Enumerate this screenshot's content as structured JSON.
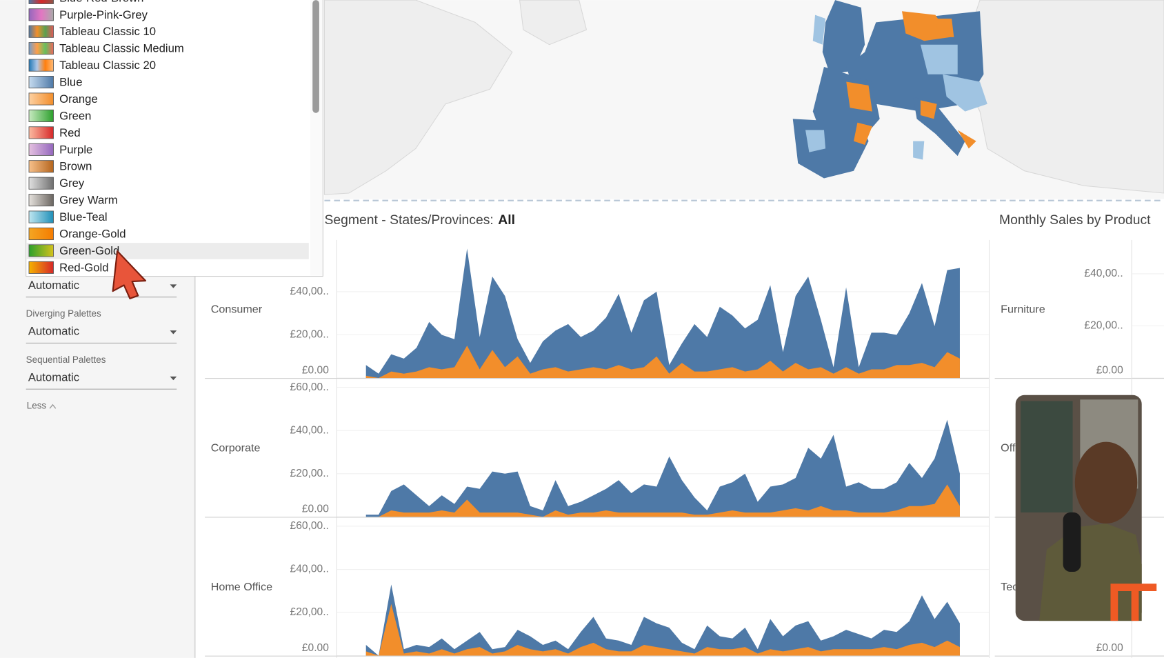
{
  "palette_menu": {
    "items": [
      "Blue-Red-Brown",
      "Purple-Pink-Grey",
      "Tableau Classic 10",
      "Tableau Classic Medium",
      "Tableau Classic 20",
      "Blue",
      "Orange",
      "Green",
      "Red",
      "Purple",
      "Brown",
      "Grey",
      "Grey Warm",
      "Blue-Teal",
      "Orange-Gold",
      "Green-Gold",
      "Red-Gold"
    ],
    "selected": "Green-Gold"
  },
  "left_panel": {
    "categorical_value": "Automatic",
    "diverging_label": "Diverging Palettes",
    "diverging_value": "Automatic",
    "sequential_label": "Sequential Palettes",
    "sequential_value": "Automatic",
    "less": "Less"
  },
  "sheet_title": {
    "prefix": "Segment - States/Provinces:",
    "value": "All"
  },
  "chart_data": [
    {
      "type": "area",
      "label": "Consumer",
      "ylim": [
        0,
        64000
      ],
      "yticks": [
        {
          "value": 0,
          "label": "£0.00"
        },
        {
          "value": 20000,
          "label": "£20,00.."
        },
        {
          "value": 40000,
          "label": "£40,00.."
        }
      ],
      "series": [
        {
          "color": "#4e79a7",
          "values": [
            6000,
            2000,
            11000,
            9000,
            14000,
            26000,
            20000,
            18000,
            60000,
            19000,
            47000,
            38000,
            18000,
            7000,
            17000,
            22000,
            25000,
            19000,
            22000,
            28000,
            39000,
            21000,
            36000,
            40000,
            6000,
            16000,
            25000,
            19000,
            33000,
            29000,
            23000,
            27000,
            43000,
            12000,
            38000,
            47000,
            27000,
            5000,
            42000,
            5000,
            21000,
            21000,
            20000,
            30000,
            44000,
            24000,
            50000,
            51000
          ]
        },
        {
          "color": "#f28e2b",
          "values": [
            1000,
            0,
            3000,
            2000,
            3000,
            5000,
            4000,
            5000,
            15000,
            4000,
            13000,
            5000,
            10000,
            2000,
            4000,
            5000,
            3000,
            4000,
            5000,
            4000,
            6000,
            4000,
            5000,
            10000,
            2000,
            7000,
            3000,
            3000,
            4000,
            5000,
            3000,
            4000,
            8000,
            3000,
            7000,
            4000,
            5000,
            2000,
            5000,
            2000,
            4000,
            4000,
            6000,
            6000,
            7000,
            5000,
            12000,
            9000
          ]
        }
      ]
    },
    {
      "type": "area",
      "label": "Corporate",
      "ylim": [
        0,
        64000
      ],
      "yticks": [
        {
          "value": 0,
          "label": "£0.00"
        },
        {
          "value": 20000,
          "label": "£20,00.."
        },
        {
          "value": 40000,
          "label": "£40,00.."
        },
        {
          "value": 60000,
          "label": "£60,00.."
        }
      ],
      "series": [
        {
          "color": "#4e79a7",
          "values": [
            1000,
            1000,
            12000,
            15000,
            10000,
            5000,
            10000,
            6000,
            14000,
            13000,
            21000,
            20000,
            21000,
            5000,
            3000,
            17000,
            5000,
            7000,
            10000,
            13000,
            17000,
            11000,
            15000,
            14000,
            28000,
            17000,
            9000,
            3000,
            14000,
            16000,
            20000,
            7000,
            14000,
            15000,
            18000,
            32000,
            27000,
            38000,
            14000,
            16000,
            13000,
            13000,
            16000,
            25000,
            18000,
            27000,
            45000,
            20000
          ]
        },
        {
          "color": "#f28e2b",
          "values": [
            0,
            0,
            3000,
            2000,
            2000,
            2000,
            3000,
            2000,
            8000,
            2000,
            2000,
            2000,
            2000,
            1000,
            0,
            3000,
            1000,
            2000,
            2000,
            3000,
            2000,
            2000,
            2000,
            2000,
            2000,
            2000,
            1000,
            1000,
            2000,
            3000,
            2000,
            2000,
            2000,
            3000,
            4000,
            3000,
            5000,
            3000,
            3000,
            2000,
            2000,
            2000,
            3000,
            5000,
            5000,
            6000,
            15000,
            5000
          ]
        }
      ]
    },
    {
      "type": "area",
      "label": "Home Office",
      "ylim": [
        0,
        64000
      ],
      "yticks": [
        {
          "value": 0,
          "label": "£0.00"
        },
        {
          "value": 20000,
          "label": "£20,00.."
        },
        {
          "value": 40000,
          "label": "£40,00.."
        },
        {
          "value": 60000,
          "label": "£60,00.."
        }
      ],
      "series": [
        {
          "color": "#4e79a7",
          "values": [
            5000,
            0,
            33000,
            3000,
            5000,
            4000,
            8000,
            3000,
            7000,
            11000,
            3000,
            4000,
            12000,
            9000,
            5000,
            7000,
            3000,
            11000,
            18000,
            8000,
            7000,
            5000,
            18000,
            15000,
            13000,
            6000,
            3000,
            14000,
            9000,
            8000,
            13000,
            3000,
            17000,
            9000,
            14000,
            16000,
            7000,
            9000,
            12000,
            10000,
            8000,
            12000,
            11000,
            16000,
            28000,
            17000,
            25000,
            15000
          ]
        },
        {
          "color": "#f28e2b",
          "values": [
            2000,
            0,
            24000,
            1000,
            2000,
            1000,
            3000,
            1000,
            3000,
            4000,
            1000,
            2000,
            5000,
            3000,
            2000,
            3000,
            1000,
            4000,
            6000,
            3000,
            2000,
            2000,
            5000,
            4000,
            3000,
            2000,
            1000,
            4000,
            3000,
            3000,
            4000,
            1000,
            3000,
            2000,
            3000,
            4000,
            2000,
            3000,
            3000,
            3000,
            3000,
            4000,
            3000,
            5000,
            6000,
            4000,
            7000,
            4000
          ]
        }
      ]
    }
  ],
  "right_chart": {
    "title": "Monthly Sales by Product",
    "panes": [
      {
        "label": "Furniture",
        "ylim": [
          0,
          53000
        ],
        "yticks": [
          {
            "value": 0,
            "label": "£0.00"
          },
          {
            "value": 20000,
            "label": "£20,00.."
          },
          {
            "value": 40000,
            "label": "£40,00.."
          }
        ]
      },
      {
        "label": "Office Supplies",
        "ylim": [
          0,
          53000
        ],
        "yticks": []
      },
      {
        "label": "Technology",
        "ylim": [
          0,
          53000
        ],
        "yticks": [
          {
            "value": 0,
            "label": "£0.00"
          }
        ]
      }
    ]
  }
}
